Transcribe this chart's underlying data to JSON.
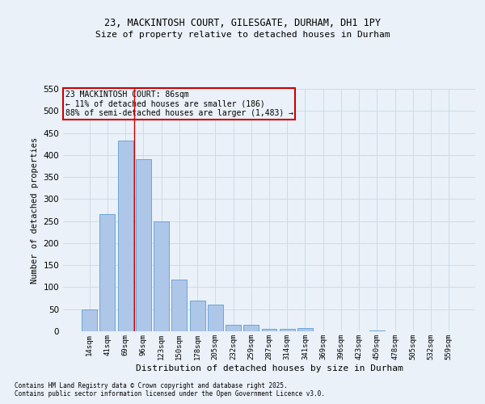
{
  "title_line1": "23, MACKINTOSH COURT, GILESGATE, DURHAM, DH1 1PY",
  "title_line2": "Size of property relative to detached houses in Durham",
  "xlabel": "Distribution of detached houses by size in Durham",
  "ylabel": "Number of detached properties",
  "categories": [
    "14sqm",
    "41sqm",
    "69sqm",
    "96sqm",
    "123sqm",
    "150sqm",
    "178sqm",
    "205sqm",
    "232sqm",
    "259sqm",
    "287sqm",
    "314sqm",
    "341sqm",
    "369sqm",
    "396sqm",
    "423sqm",
    "450sqm",
    "478sqm",
    "505sqm",
    "532sqm",
    "559sqm"
  ],
  "values": [
    50,
    265,
    433,
    390,
    250,
    117,
    70,
    60,
    14,
    14,
    6,
    5,
    7,
    0,
    0,
    0,
    2,
    0,
    0,
    0,
    0
  ],
  "bar_color": "#aec6e8",
  "bar_edge_color": "#5a9fd4",
  "grid_color": "#c8d8e8",
  "background_color": "#eaf1f8",
  "vline_x": 2.5,
  "vline_color": "#cc0000",
  "annotation_title": "23 MACKINTOSH COURT: 86sqm",
  "annotation_line2": "← 11% of detached houses are smaller (186)",
  "annotation_line3": "88% of semi-detached houses are larger (1,483) →",
  "annotation_box_color": "#cc0000",
  "ylim": [
    0,
    550
  ],
  "yticks": [
    0,
    50,
    100,
    150,
    200,
    250,
    300,
    350,
    400,
    450,
    500,
    550
  ],
  "footer_line1": "Contains HM Land Registry data © Crown copyright and database right 2025.",
  "footer_line2": "Contains public sector information licensed under the Open Government Licence v3.0."
}
